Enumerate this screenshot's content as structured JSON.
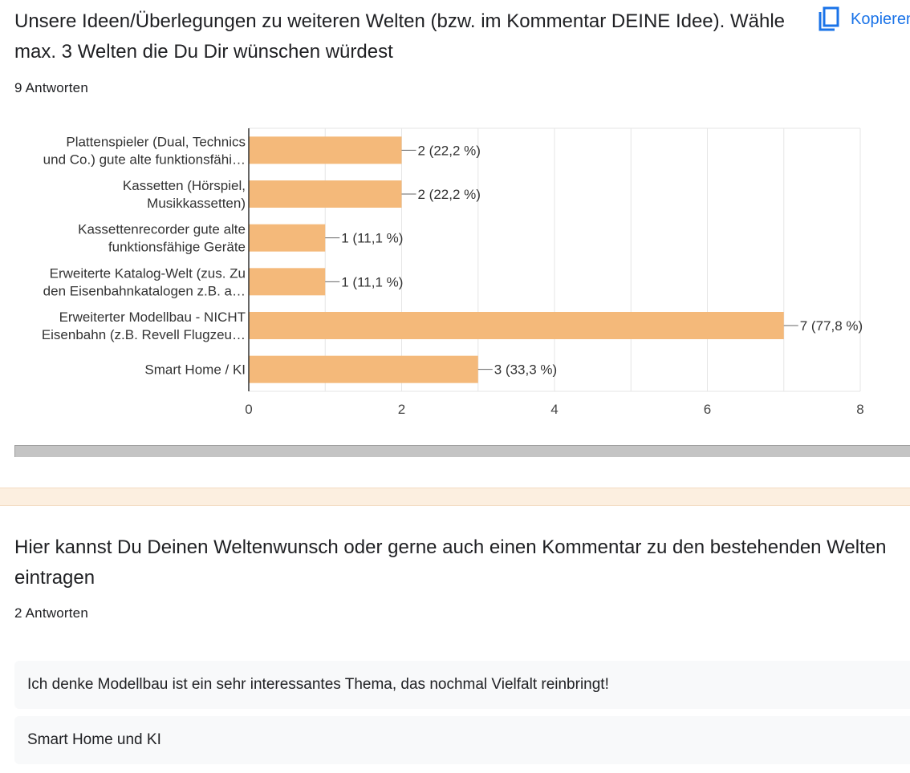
{
  "question1": {
    "title": "Unsere Ideen/Überlegungen zu weiteren Welten (bzw. im Kommentar DEINE Idee). Wähle max. 3 Welten die Du Dir wünschen würdest",
    "copy_label": "Kopieren",
    "response_count": "9 Antworten"
  },
  "chart_data": {
    "type": "bar",
    "orientation": "horizontal",
    "categories": [
      [
        "Plattenspieler (Dual, Technics",
        "und Co.) gute alte funktionsfähi…"
      ],
      [
        "Kassetten (Hörspiel,",
        "Musikkassetten)"
      ],
      [
        "Kassettenrecorder gute alte",
        "funktionsfähige Geräte"
      ],
      [
        "Erweiterte Katalog-Welt (zus. Zu",
        "den Eisenbahnkatalogen z.B. a…"
      ],
      [
        "Erweiterter Modellbau - NICHT",
        "Eisenbahn (z.B. Revell Flugzeu…"
      ],
      [
        "Smart Home / KI"
      ]
    ],
    "values": [
      2,
      2,
      1,
      1,
      7,
      3
    ],
    "data_labels": [
      "2 (22,2 %)",
      "2 (22,2 %)",
      "1 (11,1 %)",
      "1 (11,1 %)",
      "7 (77,8 %)",
      "3 (33,3 %)"
    ],
    "xlim": [
      0,
      8
    ],
    "xticks": [
      0,
      2,
      4,
      6,
      8
    ],
    "grid": true,
    "bar_color": "#f4b97a"
  },
  "question2": {
    "title": "Hier kannst Du Deinen Weltenwunsch oder gerne auch einen Kommentar zu den bestehenden Welten eintragen",
    "response_count": "2 Antworten",
    "responses": [
      "Ich denke Modellbau ist ein sehr interessantes Thema, das nochmal Vielfalt reinbringt!",
      "Smart Home und KI"
    ]
  },
  "colors": {
    "accent": "#1a73e8",
    "divider": "#fcefe0"
  },
  "icons": {
    "copy": "copy-icon"
  }
}
